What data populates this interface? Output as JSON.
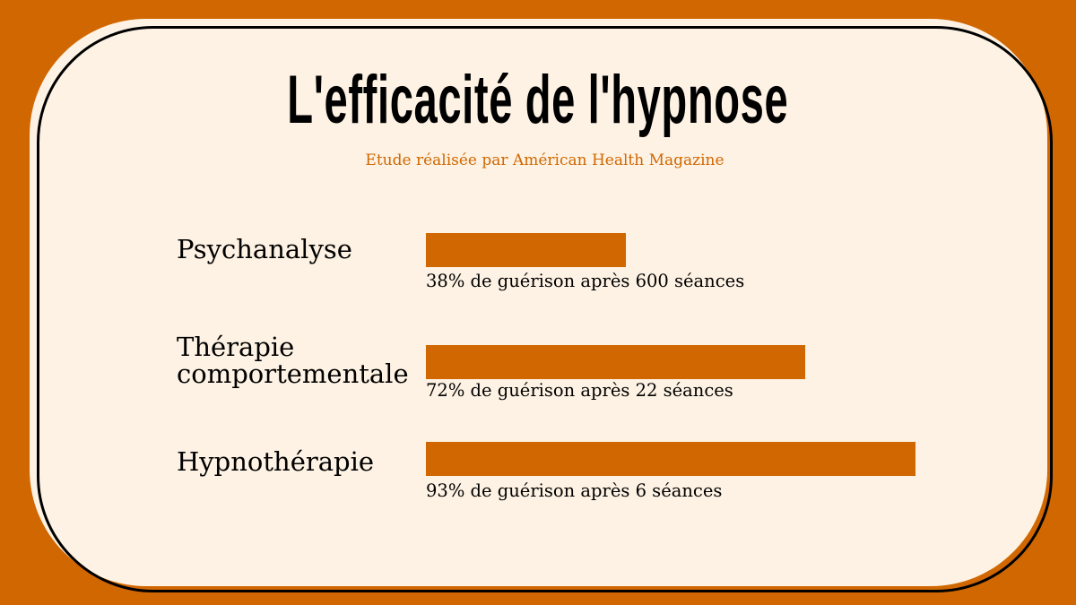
{
  "chart_data": {
    "type": "bar",
    "orientation": "horizontal",
    "title": "L'efficacité de l'hypnose",
    "subtitle": "Etude réalisée par Américan Health Magazine",
    "categories": [
      "Psychanalyse",
      "Thérapie comportementale",
      "Hypnothérapie"
    ],
    "values": [
      38,
      72,
      93
    ],
    "unit": "%",
    "captions": [
      "38% de guérison après 600 séances",
      "72% de guérison après 22 séances",
      "93% de guérison après 6 séances"
    ],
    "label_lines": [
      [
        "Psychanalyse"
      ],
      [
        "Thérapie",
        "comportementale"
      ],
      [
        "Hypnothérapie"
      ]
    ],
    "xlim": [
      0,
      100
    ],
    "grid": false,
    "bar_color": "#d16700"
  },
  "colors": {
    "background": "#d16700",
    "card": "#fdf2e3",
    "accent": "#d16700"
  }
}
